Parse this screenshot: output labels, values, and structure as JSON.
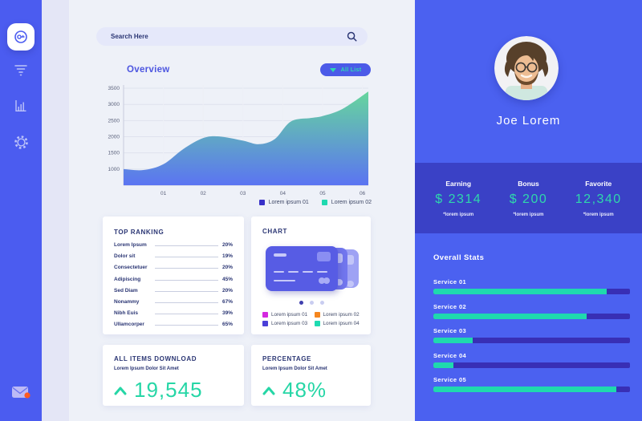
{
  "colors": {
    "sidebar_blue": "#4b5cf0",
    "panel_blue": "#4b61f0",
    "band_indigo": "#3a41c6",
    "track_indigo": "#382fb5",
    "accent_teal": "#26d6a6",
    "navy_text": "#2b3674",
    "gradient_top": "#66d69d",
    "gradient_bottom": "#5b74f2",
    "notification_orange": "#ff5a1f"
  },
  "sidebar": {
    "icons": [
      "dashboard",
      "filter",
      "bar-chart",
      "settings",
      "mail"
    ]
  },
  "search": {
    "placeholder": "Search Here"
  },
  "overview": {
    "title": "Overview",
    "all_list_label": "All List",
    "legend": [
      {
        "label": "Lorem ipsum 01",
        "color": "#3730c8"
      },
      {
        "label": "Lorem ipsum 02",
        "color": "#1fd9b0"
      }
    ]
  },
  "chart_data": {
    "type": "area",
    "title": "Overview",
    "x_ticks": [
      "01",
      "02",
      "03",
      "04",
      "05",
      "06"
    ],
    "y_ticks": [
      3500,
      3000,
      2500,
      2000,
      1500,
      1000
    ],
    "xlim": [
      0,
      6.15
    ],
    "ylim": [
      500,
      3600
    ],
    "grid": true,
    "legend_position": "bottom-right",
    "legend": [
      "Lorem ipsum 01",
      "Lorem ipsum 02"
    ],
    "series": [
      {
        "name": "Lorem ipsum",
        "points": [
          [
            0,
            1000
          ],
          [
            0.5,
            970
          ],
          [
            1,
            1150
          ],
          [
            1.5,
            1620
          ],
          [
            2,
            1960
          ],
          [
            2.4,
            2010
          ],
          [
            3,
            1880
          ],
          [
            3.4,
            1770
          ],
          [
            3.8,
            1930
          ],
          [
            4.2,
            2470
          ],
          [
            4.7,
            2580
          ],
          [
            5,
            2640
          ],
          [
            5.5,
            2860
          ],
          [
            6.15,
            3400
          ]
        ]
      }
    ]
  },
  "top_ranking": {
    "title": "TOP RANKING",
    "items": [
      {
        "label": "Lorem Ipsum",
        "value": "20%"
      },
      {
        "label": "Dolor sit",
        "value": "19%"
      },
      {
        "label": "Consectetuer",
        "value": "20%"
      },
      {
        "label": "Adipiscing",
        "value": "45%"
      },
      {
        "label": "Sed Diam",
        "value": "20%"
      },
      {
        "label": "Nonammy",
        "value": "67%"
      },
      {
        "label": "Nibh Euis",
        "value": "39%"
      },
      {
        "label": "Ullamcorper",
        "value": "65%"
      }
    ]
  },
  "chart_card": {
    "title": "CHART",
    "dots": 3,
    "legend": [
      {
        "label": "Lorem ipsum 01",
        "color": "#d428e0"
      },
      {
        "label": "Lorem ipsum 02",
        "color": "#f5861f"
      },
      {
        "label": "Lorem ipsum 03",
        "color": "#4a3fd8"
      },
      {
        "label": "Lorem ipsum 04",
        "color": "#1edbb1"
      }
    ]
  },
  "downloads_card": {
    "title": "ALL ITEMS DOWNLOAD",
    "subtitle": "Lorem Ipsum Dolor Sit Amet",
    "value": "19,545"
  },
  "percentage_card": {
    "title": "PERCENTAGE",
    "subtitle": "Lorem Ipsum Dolor Sit Amet",
    "value": "48%"
  },
  "profile": {
    "name": "Joe Lorem"
  },
  "stats_band": {
    "items": [
      {
        "label": "Earning",
        "value": "$ 2314",
        "note": "*lorem ipsum"
      },
      {
        "label": "Bonus",
        "value": "$ 200",
        "note": "*lorem ipsum"
      },
      {
        "label": "Favorite",
        "value": "12,340",
        "note": "*lorem ipsum"
      }
    ]
  },
  "overall_stats": {
    "title": "Overall Stats",
    "services": [
      {
        "label": "Service 01",
        "percent": 88
      },
      {
        "label": "Service 02",
        "percent": 78
      },
      {
        "label": "Service 03",
        "percent": 20
      },
      {
        "label": "Service 04",
        "percent": 10
      },
      {
        "label": "Service 05",
        "percent": 93
      }
    ]
  }
}
